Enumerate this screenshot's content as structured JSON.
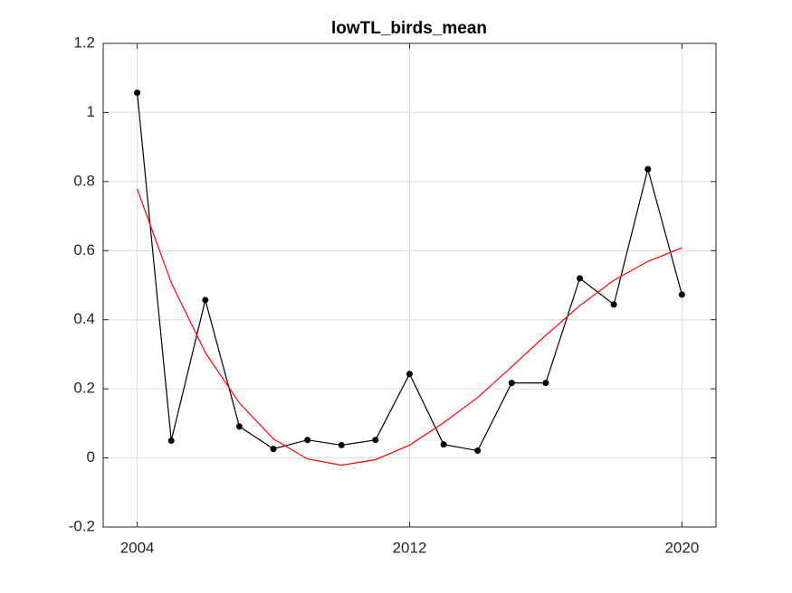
{
  "chart_data": {
    "type": "line",
    "title": "lowTL_birds_mean",
    "x": [
      2004,
      2005,
      2006,
      2007,
      2008,
      2009,
      2010,
      2011,
      2012,
      2013,
      2014,
      2015,
      2016,
      2017,
      2018,
      2019,
      2020
    ],
    "series": [
      {
        "color": "#000000",
        "markers": true,
        "values": [
          1.057,
          0.05,
          0.457,
          0.091,
          0.026,
          0.052,
          0.037,
          0.052,
          0.243,
          0.039,
          0.021,
          0.217,
          0.217,
          0.52,
          0.444,
          0.836,
          0.473
        ]
      },
      {
        "color": "#ff0000",
        "markers": false,
        "values": [
          0.778,
          0.507,
          0.305,
          0.159,
          0.055,
          -0.003,
          -0.021,
          -0.005,
          0.037,
          0.102,
          0.175,
          0.264,
          0.355,
          0.441,
          0.514,
          0.569,
          0.608
        ]
      }
    ],
    "xlim": [
      2003,
      2021
    ],
    "xticks": [
      2004,
      2012,
      2020
    ],
    "ylim": [
      -0.2,
      1.2
    ],
    "yticks": [
      -0.2,
      0,
      0.2,
      0.4,
      0.6,
      0.8,
      1,
      1.2
    ],
    "grid": true
  }
}
